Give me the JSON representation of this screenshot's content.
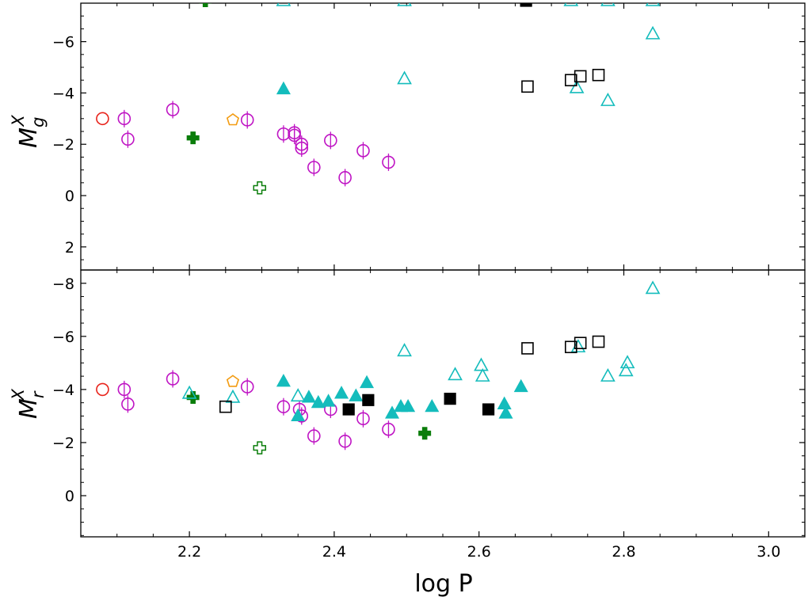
{
  "chart_data": {
    "type": "scatter",
    "xlabel": "log P",
    "x_ticks": [
      "2.2",
      "2.4",
      "2.6",
      "2.8",
      "3.0"
    ],
    "xlim": [
      2.05,
      3.05
    ],
    "colors": {
      "red": "#e8231b",
      "magenta": "#bf14c4",
      "orange": "#f39c12",
      "green": "#0a7d0a",
      "cyan": "#14bcbc",
      "black": "#000000"
    },
    "panels": [
      {
        "id": "g",
        "ylabel_base": "M",
        "ylabel_sup": "X",
        "ylabel_sub": "g",
        "ylim": [
          2.9,
          -7.5
        ],
        "y_ticks": [
          "−6",
          "−4",
          "−2",
          "0",
          "2"
        ],
        "y_tick_values": [
          -6,
          -4,
          -2,
          0,
          2
        ],
        "series": [
          {
            "name": "red open circle",
            "marker": "circle",
            "fill": false,
            "color": "red",
            "points": [
              [
                2.08,
                -3.0
              ]
            ]
          },
          {
            "name": "magenta open circles",
            "marker": "circle",
            "fill": false,
            "color": "magenta",
            "points": [
              [
                2.11,
                -3.0
              ],
              [
                2.115,
                -2.2
              ],
              [
                2.177,
                -3.35
              ],
              [
                2.28,
                -2.95
              ],
              [
                2.33,
                -2.4
              ],
              [
                2.345,
                -2.45
              ],
              [
                2.345,
                -2.35
              ],
              [
                2.355,
                -2.0
              ],
              [
                2.355,
                -1.85
              ],
              [
                2.372,
                -1.1
              ],
              [
                2.395,
                -2.15
              ],
              [
                2.415,
                -0.7
              ],
              [
                2.44,
                -1.75
              ],
              [
                2.475,
                -1.3
              ]
            ]
          },
          {
            "name": "orange open pentagon",
            "marker": "pentagon",
            "fill": false,
            "color": "orange",
            "points": [
              [
                2.26,
                -2.95
              ]
            ]
          },
          {
            "name": "green filled cross",
            "marker": "plus",
            "fill": true,
            "color": "green",
            "points": [
              [
                2.205,
                -2.25
              ]
            ]
          },
          {
            "name": "green open cross",
            "marker": "plus",
            "fill": false,
            "color": "green",
            "points": [
              [
                2.297,
                -0.3
              ]
            ]
          },
          {
            "name": "cyan filled triangles",
            "marker": "triangle",
            "fill": true,
            "color": "cyan",
            "points": [
              [
                2.33,
                -4.15
              ]
            ]
          },
          {
            "name": "cyan open triangles",
            "marker": "triangle",
            "fill": false,
            "color": "cyan",
            "points": [
              [
                2.497,
                -4.55
              ],
              [
                2.735,
                -4.2
              ],
              [
                2.778,
                -3.7
              ],
              [
                2.84,
                -6.3
              ]
            ]
          },
          {
            "name": "black open squares",
            "marker": "square",
            "fill": false,
            "color": "black",
            "points": [
              [
                2.667,
                -4.25
              ],
              [
                2.727,
                -4.5
              ],
              [
                2.74,
                -4.65
              ],
              [
                2.765,
                -4.7
              ]
            ]
          }
        ]
      },
      {
        "id": "r",
        "ylabel_base": "M",
        "ylabel_sup": "X",
        "ylabel_sub": "r",
        "ylim": [
          1.55,
          -8.5
        ],
        "y_ticks": [
          "−8",
          "−6",
          "−4",
          "−2",
          "0"
        ],
        "y_tick_values": [
          -8,
          -6,
          -4,
          -2,
          0
        ],
        "series": [
          {
            "name": "red open circle",
            "marker": "circle",
            "fill": false,
            "color": "red",
            "points": [
              [
                2.08,
                -4.0
              ]
            ]
          },
          {
            "name": "magenta open circles",
            "marker": "circle",
            "fill": false,
            "color": "magenta",
            "points": [
              [
                2.11,
                -4.0
              ],
              [
                2.115,
                -3.45
              ],
              [
                2.177,
                -4.4
              ],
              [
                2.28,
                -4.1
              ],
              [
                2.33,
                -3.35
              ],
              [
                2.352,
                -3.25
              ],
              [
                2.355,
                -3.0
              ],
              [
                2.372,
                -2.25
              ],
              [
                2.395,
                -3.25
              ],
              [
                2.415,
                -2.05
              ],
              [
                2.44,
                -2.9
              ],
              [
                2.475,
                -2.5
              ]
            ]
          },
          {
            "name": "orange open pentagon",
            "marker": "pentagon",
            "fill": false,
            "color": "orange",
            "points": [
              [
                2.26,
                -4.3
              ]
            ]
          },
          {
            "name": "green filled crosses",
            "marker": "plus",
            "fill": true,
            "color": "green",
            "points": [
              [
                2.205,
                -3.7
              ],
              [
                2.525,
                -2.35
              ]
            ]
          },
          {
            "name": "green open cross",
            "marker": "plus",
            "fill": false,
            "color": "green",
            "points": [
              [
                2.297,
                -1.8
              ]
            ]
          },
          {
            "name": "cyan filled triangles",
            "marker": "triangle",
            "fill": true,
            "color": "cyan",
            "points": [
              [
                2.33,
                -4.3
              ],
              [
                2.35,
                -3.0
              ],
              [
                2.365,
                -3.7
              ],
              [
                2.378,
                -3.5
              ],
              [
                2.392,
                -3.55
              ],
              [
                2.41,
                -3.85
              ],
              [
                2.43,
                -3.75
              ],
              [
                2.445,
                -4.25
              ],
              [
                2.48,
                -3.1
              ],
              [
                2.492,
                -3.35
              ],
              [
                2.502,
                -3.35
              ],
              [
                2.535,
                -3.35
              ],
              [
                2.635,
                -3.45
              ],
              [
                2.637,
                -3.1
              ],
              [
                2.658,
                -4.1
              ]
            ]
          },
          {
            "name": "cyan open triangles",
            "marker": "triangle",
            "fill": false,
            "color": "cyan",
            "points": [
              [
                2.2,
                -3.85
              ],
              [
                2.26,
                -3.7
              ],
              [
                2.35,
                -3.75
              ],
              [
                2.497,
                -5.45
              ],
              [
                2.567,
                -4.55
              ],
              [
                2.603,
                -4.9
              ],
              [
                2.605,
                -4.5
              ],
              [
                2.737,
                -5.6
              ],
              [
                2.778,
                -4.5
              ],
              [
                2.803,
                -4.7
              ],
              [
                2.805,
                -5.0
              ],
              [
                2.84,
                -7.8
              ]
            ]
          },
          {
            "name": "black open squares",
            "marker": "square",
            "fill": false,
            "color": "black",
            "points": [
              [
                2.25,
                -3.35
              ],
              [
                2.667,
                -5.55
              ],
              [
                2.727,
                -5.6
              ],
              [
                2.74,
                -5.75
              ],
              [
                2.765,
                -5.8
              ]
            ]
          },
          {
            "name": "black filled squares",
            "marker": "square",
            "fill": true,
            "color": "black",
            "points": [
              [
                2.42,
                -3.25
              ],
              [
                2.447,
                -3.6
              ],
              [
                2.56,
                -3.65
              ],
              [
                2.613,
                -3.25
              ]
            ]
          }
        ]
      }
    ],
    "clipped_markers_top": [
      {
        "marker": "plus",
        "fill": true,
        "color": "green",
        "x": 2.222
      },
      {
        "marker": "triangle",
        "fill": false,
        "color": "cyan",
        "x": 2.33
      },
      {
        "marker": "triangle",
        "fill": false,
        "color": "cyan",
        "x": 2.497
      },
      {
        "marker": "square",
        "fill": true,
        "color": "black",
        "x": 2.665
      },
      {
        "marker": "triangle",
        "fill": false,
        "color": "cyan",
        "x": 2.727
      },
      {
        "marker": "triangle",
        "fill": false,
        "color": "cyan",
        "x": 2.778
      },
      {
        "marker": "triangle",
        "fill": false,
        "color": "cyan",
        "x": 2.84
      }
    ]
  }
}
